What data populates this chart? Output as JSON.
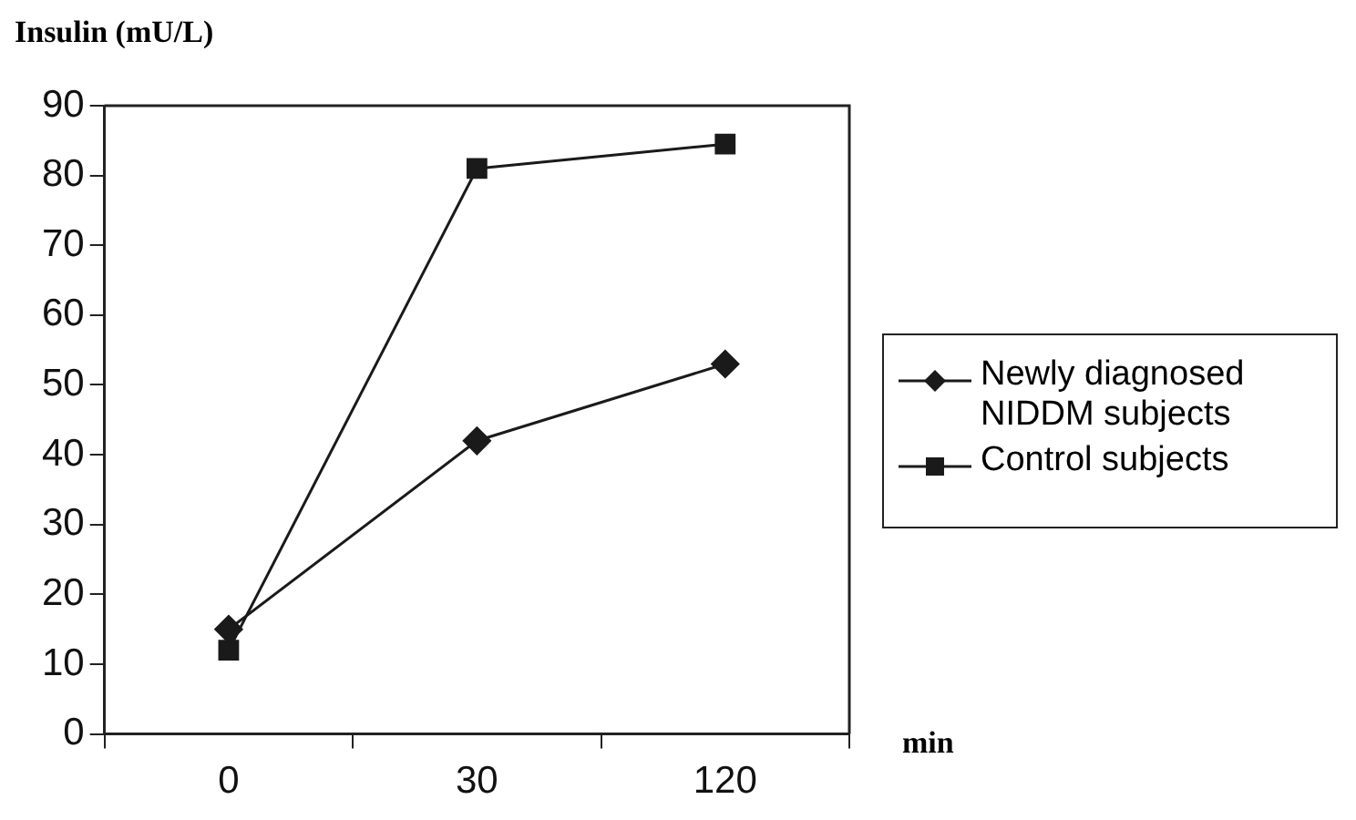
{
  "chart_data": {
    "type": "line",
    "ylabel": "Insulin (mU/L)",
    "xlabel": "min",
    "categories": [
      "0",
      "30",
      "120"
    ],
    "series": [
      {
        "name": "Newly diagnosed NIDDM subjects",
        "color": "#1a1a1a",
        "marker": "diamond",
        "values": [
          15,
          42,
          53
        ]
      },
      {
        "name": "Control subjects",
        "color": "#1a1a1a",
        "marker": "square",
        "values": [
          12,
          81,
          84.5
        ]
      }
    ],
    "ylim": [
      0,
      90
    ],
    "yticks": [
      0,
      10,
      20,
      30,
      40,
      50,
      60,
      70,
      80,
      90
    ],
    "grid": false,
    "legend": "right",
    "line_style": "solid"
  }
}
